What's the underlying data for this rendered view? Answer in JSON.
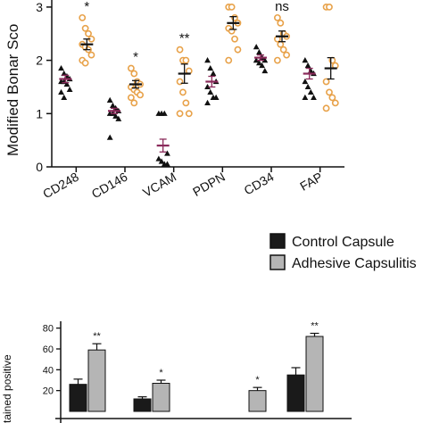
{
  "chart_data": [
    {
      "type": "scatter",
      "title": "",
      "ylabel": "Modified Bonar Sco",
      "ylim": [
        0,
        3.3
      ],
      "yticks": [
        0,
        1,
        2,
        3
      ],
      "categories": [
        "CD248",
        "CD146",
        "VCAM",
        "PDPN",
        "CD34",
        "FAP"
      ],
      "series_colors": {
        "control": "#8a2a5a",
        "adhesive": "#e8a24a"
      },
      "groups": [
        {
          "category": "CD248",
          "control": {
            "mean": 1.65,
            "sem": 0.07,
            "points": [
              1.85,
              1.75,
              1.7,
              1.65,
              1.6,
              1.6,
              1.55,
              1.45,
              1.4,
              1.3
            ]
          },
          "adhesive": {
            "mean": 2.3,
            "sem": 0.1,
            "points": [
              2.8,
              2.6,
              2.5,
              2.4,
              2.3,
              2.25,
              2.2,
              2.1,
              2.0,
              1.95
            ]
          },
          "significance": "*"
        },
        {
          "category": "CD146",
          "control": {
            "mean": 1.05,
            "sem": 0.05,
            "points": [
              1.25,
              1.15,
              1.1,
              1.05,
              1.0,
              1.0,
              0.95,
              0.9,
              0.55
            ]
          },
          "adhesive": {
            "mean": 1.55,
            "sem": 0.07,
            "points": [
              1.85,
              1.75,
              1.6,
              1.55,
              1.5,
              1.45,
              1.4,
              1.35,
              1.3,
              1.2
            ]
          },
          "significance": "*"
        },
        {
          "category": "VCAM",
          "control": {
            "mean": 0.4,
            "sem": 0.12,
            "points": [
              1.0,
              1.0,
              1.0,
              0.25,
              0.15,
              0.1,
              0.05,
              0.05
            ]
          },
          "adhesive": {
            "mean": 1.75,
            "sem": 0.18,
            "points": [
              2.2,
              2.0,
              2.0,
              1.8,
              1.6,
              1.4,
              1.2,
              1.0,
              1.0
            ]
          },
          "significance": "**"
        },
        {
          "category": "PDPN",
          "control": {
            "mean": 1.6,
            "sem": 0.1,
            "points": [
              2.0,
              1.85,
              1.75,
              1.6,
              1.5,
              1.4,
              1.3,
              1.3,
              1.2
            ]
          },
          "adhesive": {
            "mean": 2.7,
            "sem": 0.12,
            "points": [
              3.0,
              3.0,
              2.8,
              2.7,
              2.6,
              2.55,
              2.4,
              2.2,
              2.0
            ]
          },
          "significance": "*"
        },
        {
          "category": "CD34",
          "control": {
            "mean": 2.05,
            "sem": 0.05,
            "points": [
              2.25,
              2.15,
              2.05,
              2.0,
              2.0,
              1.95,
              1.9,
              1.8
            ]
          },
          "adhesive": {
            "mean": 2.45,
            "sem": 0.1,
            "points": [
              2.8,
              2.7,
              2.5,
              2.45,
              2.4,
              2.3,
              2.2,
              2.1,
              2.0
            ]
          },
          "significance": "ns"
        },
        {
          "category": "FAP",
          "control": {
            "mean": 1.75,
            "sem": 0.1,
            "points": [
              2.0,
              1.9,
              1.8,
              1.75,
              1.6,
              1.5,
              1.4,
              1.3,
              1.3
            ]
          },
          "adhesive": {
            "mean": 1.85,
            "sem": 0.2,
            "points": [
              3.0,
              3.0,
              2.0,
              1.9,
              1.6,
              1.4,
              1.3,
              1.2,
              1.1
            ]
          },
          "significance": ""
        }
      ]
    },
    {
      "type": "bar",
      "title": "",
      "ylabel": "tained positive",
      "ylim": [
        0,
        90
      ],
      "yticks": [
        20,
        40,
        60,
        80
      ],
      "series": [
        {
          "name": "Control Capsule",
          "color": "#1a1a1a",
          "values": [
            26,
            12,
            0,
            35
          ]
        },
        {
          "name": "Adhesive Capsulitis",
          "color": "#b5b5b5",
          "values": [
            59,
            27,
            20,
            72
          ]
        }
      ],
      "errors": [
        [
          5,
          2,
          0,
          7
        ],
        [
          6,
          3,
          3,
          3
        ]
      ],
      "significance": [
        "**",
        "*",
        "*",
        "**"
      ]
    }
  ],
  "legend": {
    "items": [
      {
        "label": "Control Capsule",
        "color": "#1a1a1a"
      },
      {
        "label": "Adhesive Capsulitis",
        "color": "#b5b5b5"
      }
    ]
  }
}
